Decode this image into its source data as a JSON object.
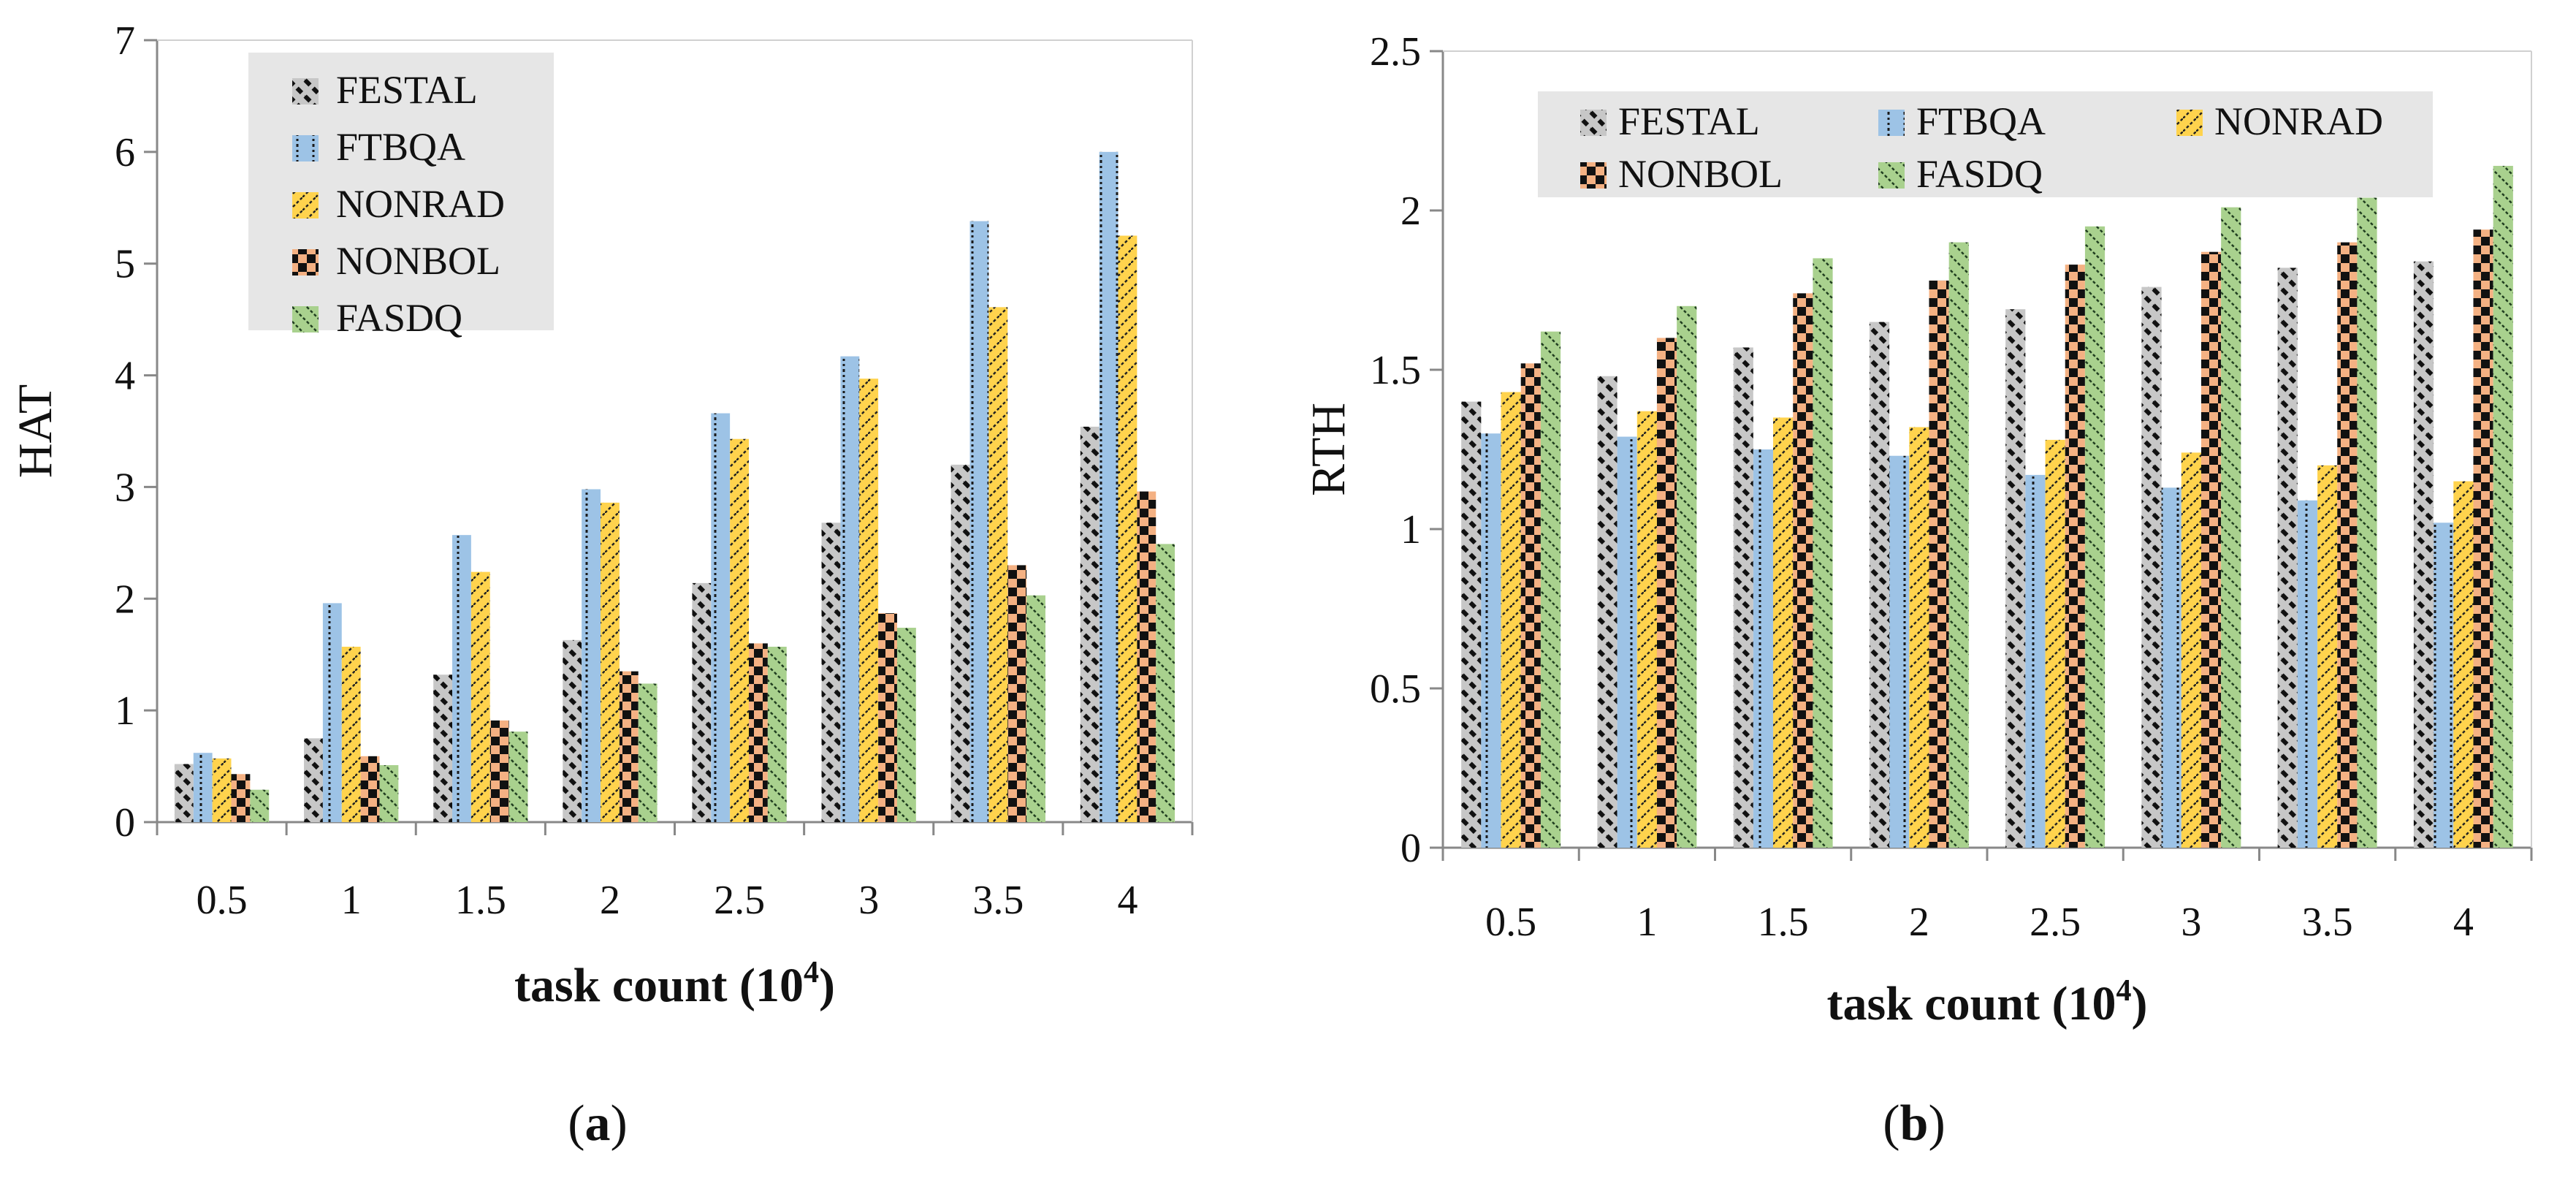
{
  "figure": {
    "panels": [
      {
        "label": "(a)",
        "label_text": "a"
      },
      {
        "label": "(b)",
        "label_text": "b"
      }
    ]
  },
  "colors": {
    "FESTAL": "#c7c7c7",
    "FTBQA": "#9dc3e6",
    "NONRAD": "#ffd34d",
    "NONBOL": "#f4b183",
    "FASDQ": "#a9d18e"
  },
  "chart_data": [
    {
      "type": "bar",
      "panel": "a",
      "xlabel": "task count (10",
      "xlabel_sup": "4",
      "xlabel_end": ")",
      "ylabel": "HAT",
      "ylim": [
        0,
        7
      ],
      "yticks": [
        "0",
        "1",
        "2",
        "3",
        "4",
        "5",
        "6",
        "7"
      ],
      "categories": [
        "0.5",
        "1",
        "1.5",
        "2",
        "2.5",
        "3",
        "3.5",
        "4"
      ],
      "legend_position": "top-left",
      "series": [
        {
          "name": "FESTAL",
          "values": [
            0.52,
            0.75,
            1.32,
            1.63,
            2.14,
            2.68,
            3.2,
            3.54
          ]
        },
        {
          "name": "FTBQA",
          "values": [
            0.62,
            1.96,
            2.57,
            2.98,
            3.66,
            4.17,
            5.38,
            6.0
          ]
        },
        {
          "name": "NONRAD",
          "values": [
            0.57,
            1.57,
            2.24,
            2.86,
            3.43,
            3.97,
            4.61,
            5.25
          ]
        },
        {
          "name": "NONBOL",
          "values": [
            0.43,
            0.59,
            0.91,
            1.35,
            1.6,
            1.87,
            2.3,
            2.96
          ]
        },
        {
          "name": "FASDQ",
          "values": [
            0.29,
            0.51,
            0.81,
            1.24,
            1.57,
            1.74,
            2.03,
            2.49
          ]
        }
      ]
    },
    {
      "type": "bar",
      "panel": "b",
      "xlabel": "task count (10",
      "xlabel_sup": "4",
      "xlabel_end": ")",
      "ylabel": "RTH",
      "ylim": [
        0,
        2.5
      ],
      "yticks": [
        "0",
        "0.5",
        "1",
        "1.5",
        "2",
        "2.5"
      ],
      "categories": [
        "0.5",
        "1",
        "1.5",
        "2",
        "2.5",
        "3",
        "3.5",
        "4"
      ],
      "legend_position": "top",
      "series": [
        {
          "name": "FESTAL",
          "values": [
            1.4,
            1.48,
            1.57,
            1.65,
            1.69,
            1.76,
            1.82,
            1.84
          ]
        },
        {
          "name": "FTBQA",
          "values": [
            1.3,
            1.29,
            1.25,
            1.23,
            1.17,
            1.13,
            1.09,
            1.02
          ]
        },
        {
          "name": "NONRAD",
          "values": [
            1.43,
            1.37,
            1.35,
            1.32,
            1.28,
            1.24,
            1.2,
            1.15
          ]
        },
        {
          "name": "NONBOL",
          "values": [
            1.52,
            1.6,
            1.74,
            1.78,
            1.83,
            1.87,
            1.9,
            1.94
          ]
        },
        {
          "name": "FASDQ",
          "values": [
            1.62,
            1.7,
            1.85,
            1.9,
            1.95,
            2.01,
            2.04,
            2.14
          ]
        }
      ]
    }
  ]
}
